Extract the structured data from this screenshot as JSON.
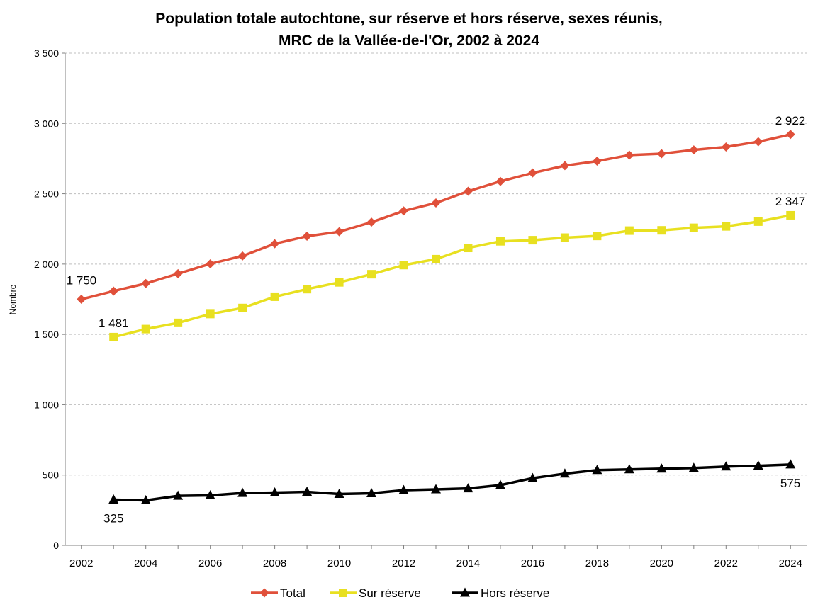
{
  "chart_data": {
    "type": "line",
    "title_line1": "Population totale autochtone, sur réserve et hors réserve, sexes réunis,",
    "title_line2": "MRC de la Vallée-de-l'Or, 2002 à 2024",
    "ylabel": "Nombre",
    "xlabel": "",
    "ylim": [
      0,
      3500
    ],
    "y_ticks": [
      0,
      500,
      1000,
      1500,
      2000,
      2500,
      3000,
      3500
    ],
    "y_tick_labels": [
      "0",
      "500",
      "1 000",
      "1 500",
      "2 000",
      "2 500",
      "3 000",
      "3 500"
    ],
    "x": [
      2002,
      2003,
      2004,
      2005,
      2006,
      2007,
      2008,
      2009,
      2010,
      2011,
      2012,
      2013,
      2014,
      2015,
      2016,
      2017,
      2018,
      2019,
      2020,
      2021,
      2022,
      2023,
      2024
    ],
    "x_ticks": [
      2002,
      2004,
      2006,
      2008,
      2010,
      2012,
      2014,
      2016,
      2018,
      2020,
      2022,
      2024
    ],
    "x_tick_labels": [
      "2002",
      "2004",
      "2006",
      "2008",
      "2010",
      "2012",
      "2014",
      "2016",
      "2018",
      "2020",
      "2022",
      "2024"
    ],
    "grid": true,
    "legend_position": "bottom",
    "series": [
      {
        "name": "Total",
        "color": "#E0503A",
        "marker": "diamond",
        "values": [
          1750,
          1808,
          1862,
          1932,
          2002,
          2058,
          2145,
          2198,
          2230,
          2298,
          2378,
          2435,
          2518,
          2588,
          2648,
          2700,
          2732,
          2775,
          2785,
          2812,
          2833,
          2870,
          2922
        ]
      },
      {
        "name": "Sur réserve",
        "color": "#E8E020",
        "marker": "square",
        "values": [
          null,
          1481,
          1538,
          1582,
          1645,
          1688,
          1768,
          1822,
          1870,
          1928,
          1993,
          2035,
          2115,
          2162,
          2170,
          2188,
          2200,
          2238,
          2240,
          2258,
          2268,
          2302,
          2347
        ]
      },
      {
        "name": "Hors réserve",
        "color": "#000000",
        "marker": "triangle",
        "values": [
          null,
          325,
          320,
          352,
          355,
          372,
          375,
          380,
          365,
          370,
          392,
          398,
          405,
          428,
          478,
          510,
          535,
          540,
          545,
          550,
          560,
          566,
          575
        ]
      }
    ],
    "annotations": [
      {
        "series": 0,
        "index": 0,
        "text": "1 750",
        "place": "above-left"
      },
      {
        "series": 0,
        "index": 22,
        "text": "2 922",
        "place": "above"
      },
      {
        "series": 1,
        "index": 1,
        "text": "1 481",
        "place": "above"
      },
      {
        "series": 1,
        "index": 22,
        "text": "2 347",
        "place": "above"
      },
      {
        "series": 2,
        "index": 1,
        "text": "325",
        "place": "below"
      },
      {
        "series": 2,
        "index": 22,
        "text": "575",
        "place": "below"
      }
    ]
  }
}
